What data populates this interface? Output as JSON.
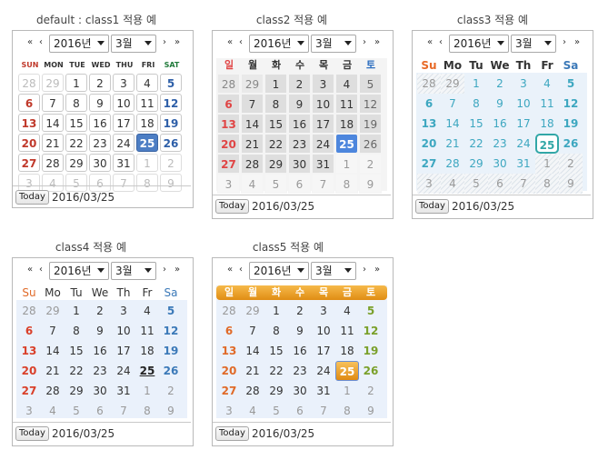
{
  "nav": {
    "first": "«",
    "prev": "‹",
    "next": "›",
    "last": "»"
  },
  "year": "2016년",
  "month": "3월",
  "today_label": "Today",
  "current_date": "2016/03/25",
  "calendars": [
    {
      "caption": "default : class1 적용 예",
      "weekdays": [
        "SUN",
        "MON",
        "TUE",
        "WED",
        "THU",
        "FRI",
        "SAT"
      ]
    },
    {
      "caption": "class2 적용 예",
      "weekdays": [
        "일",
        "월",
        "화",
        "수",
        "목",
        "금",
        "토"
      ]
    },
    {
      "caption": "class3 적용 예",
      "weekdays": [
        "Su",
        "Mo",
        "Tu",
        "We",
        "Th",
        "Fr",
        "Sa"
      ]
    },
    {
      "caption": "class4 적용 예",
      "weekdays": [
        "Su",
        "Mo",
        "Tu",
        "We",
        "Th",
        "Fr",
        "Sa"
      ]
    },
    {
      "caption": "class5 적용 예",
      "weekdays": [
        "일",
        "월",
        "화",
        "수",
        "목",
        "금",
        "토"
      ]
    }
  ],
  "days": [
    [
      "28",
      "29",
      "1",
      "2",
      "3",
      "4",
      "5"
    ],
    [
      "6",
      "7",
      "8",
      "9",
      "10",
      "11",
      "12"
    ],
    [
      "13",
      "14",
      "15",
      "16",
      "17",
      "18",
      "19"
    ],
    [
      "20",
      "21",
      "22",
      "23",
      "24",
      "25",
      "26"
    ],
    [
      "27",
      "28",
      "29",
      "30",
      "31",
      "1",
      "2"
    ],
    [
      "3",
      "4",
      "5",
      "6",
      "7",
      "8",
      "9"
    ]
  ],
  "selected_day": "25"
}
